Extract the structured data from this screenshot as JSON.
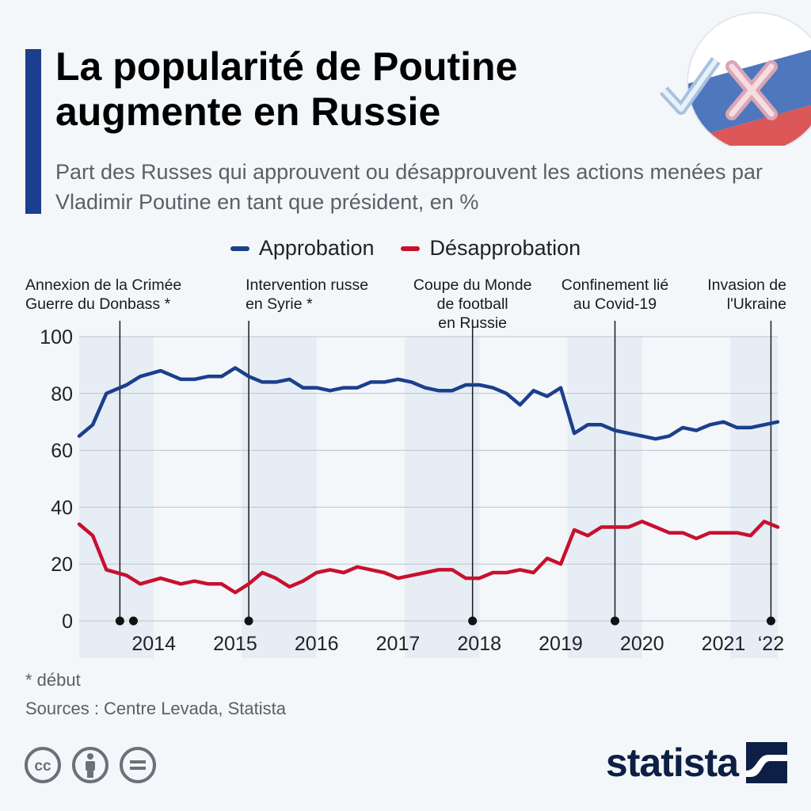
{
  "header": {
    "title": "La popularité de Poutine augmente en Russie",
    "subtitle": "Part des Russes qui approuvent ou désapprouvent les actions menées par Vladimir Poutine en tant que président, en %"
  },
  "badge": {
    "icon": "check-cross-ballot-icon"
  },
  "footer": {
    "footnote": "* début",
    "sources": "Sources : Centre Levada, Statista",
    "brand": "statista",
    "license_icons": [
      "cc-icon",
      "by-person-icon",
      "nd-equals-icon"
    ]
  },
  "colors": {
    "approval": "#1b3f8c",
    "disapproval": "#c8102e",
    "year_band": "#e6edf5",
    "grid": "#bcc3cc",
    "text": "#222222",
    "accent": "#1b3f8c"
  },
  "chart_data": {
    "type": "line",
    "ylim": [
      0,
      100
    ],
    "yticks": [
      0,
      20,
      40,
      60,
      80,
      100
    ],
    "x_range": [
      "2013-08",
      "2022-03"
    ],
    "x_labels": [
      {
        "label": "2014",
        "at": "2014-07"
      },
      {
        "label": "2015",
        "at": "2015-07"
      },
      {
        "label": "2016",
        "at": "2016-07"
      },
      {
        "label": "2017",
        "at": "2017-07"
      },
      {
        "label": "2018",
        "at": "2018-07"
      },
      {
        "label": "2019",
        "at": "2019-07"
      },
      {
        "label": "2020",
        "at": "2020-07"
      },
      {
        "label": "2021",
        "at": "2021-07"
      },
      {
        "label": "‘22",
        "at": "2022-02"
      }
    ],
    "shaded_years": [
      [
        "2013-08",
        "2014-07"
      ],
      [
        "2015-08",
        "2016-07"
      ],
      [
        "2017-08",
        "2018-07"
      ],
      [
        "2019-08",
        "2020-07"
      ],
      [
        "2021-08",
        "2022-03"
      ]
    ],
    "grid": true,
    "legend_position": "top-center",
    "series": [
      {
        "name": "Approbation",
        "x": [
          "2013-08",
          "2013-10",
          "2013-12",
          "2014-03",
          "2014-05",
          "2014-08",
          "2014-11",
          "2015-01",
          "2015-03",
          "2015-05",
          "2015-07",
          "2015-09",
          "2015-11",
          "2016-01",
          "2016-03",
          "2016-05",
          "2016-07",
          "2016-09",
          "2016-11",
          "2017-01",
          "2017-03",
          "2017-05",
          "2017-07",
          "2017-09",
          "2017-11",
          "2018-01",
          "2018-03",
          "2018-05",
          "2018-07",
          "2018-09",
          "2018-11",
          "2019-01",
          "2019-03",
          "2019-05",
          "2019-07",
          "2019-09",
          "2019-11",
          "2020-01",
          "2020-03",
          "2020-05",
          "2020-07",
          "2020-09",
          "2020-11",
          "2021-01",
          "2021-03",
          "2021-05",
          "2021-07",
          "2021-09",
          "2021-11",
          "2022-01",
          "2022-03"
        ],
        "values": [
          65,
          69,
          80,
          83,
          86,
          88,
          85,
          85,
          86,
          86,
          89,
          86,
          84,
          84,
          85,
          82,
          82,
          81,
          82,
          82,
          84,
          84,
          85,
          84,
          82,
          81,
          81,
          83,
          83,
          82,
          80,
          76,
          81,
          79,
          82,
          66,
          69,
          69,
          67,
          66,
          65,
          64,
          65,
          68,
          67,
          69,
          70,
          68,
          68,
          69,
          70
        ]
      },
      {
        "name": "Désapprobation",
        "x": [
          "2013-08",
          "2013-10",
          "2013-12",
          "2014-03",
          "2014-05",
          "2014-08",
          "2014-11",
          "2015-01",
          "2015-03",
          "2015-05",
          "2015-07",
          "2015-09",
          "2015-11",
          "2016-01",
          "2016-03",
          "2016-05",
          "2016-07",
          "2016-09",
          "2016-11",
          "2017-01",
          "2017-03",
          "2017-05",
          "2017-07",
          "2017-09",
          "2017-11",
          "2018-01",
          "2018-03",
          "2018-05",
          "2018-07",
          "2018-09",
          "2018-11",
          "2019-01",
          "2019-03",
          "2019-05",
          "2019-07",
          "2019-09",
          "2019-11",
          "2020-01",
          "2020-03",
          "2020-05",
          "2020-07",
          "2020-09",
          "2020-11",
          "2021-01",
          "2021-03",
          "2021-05",
          "2021-07",
          "2021-09",
          "2021-11",
          "2022-01",
          "2022-03"
        ],
        "values": [
          34,
          30,
          18,
          16,
          13,
          15,
          13,
          14,
          13,
          13,
          10,
          13,
          17,
          15,
          12,
          14,
          17,
          18,
          17,
          19,
          18,
          17,
          15,
          16,
          17,
          18,
          18,
          15,
          15,
          17,
          17,
          18,
          17,
          22,
          20,
          32,
          30,
          33,
          33,
          33,
          35,
          33,
          31,
          31,
          29,
          31,
          31,
          31,
          30,
          35,
          33
        ]
      }
    ],
    "events": [
      {
        "label": "Annexion de la Crimée",
        "label2": "Guerre du Donbass *",
        "at": "2014-02",
        "dots": [
          "2014-02",
          "2014-04"
        ]
      },
      {
        "label": "Intervention russe",
        "label2": "en Syrie *",
        "at": "2015-09",
        "dots": [
          "2015-09"
        ]
      },
      {
        "label": "Coupe du Monde",
        "label2": "de football",
        "label3": "en Russie",
        "at": "2018-06",
        "dots": [
          "2018-06"
        ]
      },
      {
        "label": "Confinement lié",
        "label2": "au Covid-19",
        "at": "2020-03",
        "dots": [
          "2020-03"
        ]
      },
      {
        "label": "Invasion de",
        "label2": "l'Ukraine",
        "at": "2022-02",
        "dots": [
          "2022-02"
        ]
      }
    ]
  }
}
